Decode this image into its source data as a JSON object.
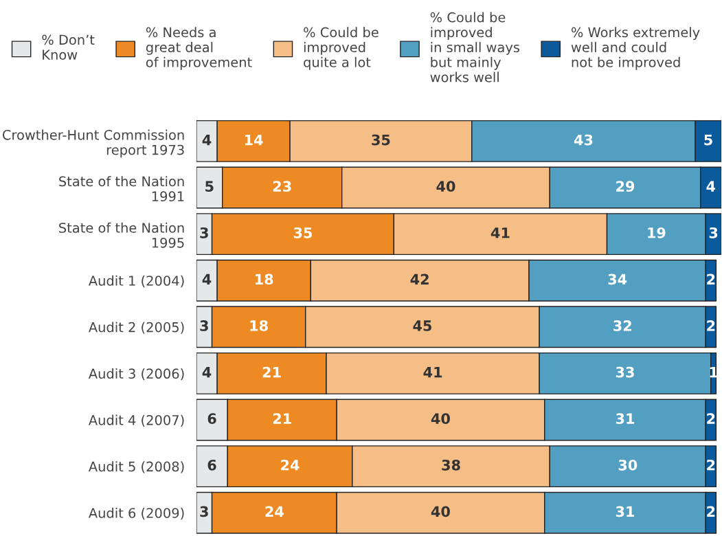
{
  "chart_data": {
    "type": "bar",
    "orientation": "horizontal",
    "stacked": true,
    "data_labels": true,
    "legend": "top",
    "grid": false,
    "tick_labels": "y",
    "categories": [
      "Crowther-Hunt Commission\nreport 1973",
      "State of the Nation\n1991",
      "State of the Nation\n1995",
      "Audit 1 (2004)",
      "Audit 2 (2005)",
      "Audit 3 (2006)",
      "Audit 4 (2007)",
      "Audit 5 (2008)",
      "Audit 6 (2009)"
    ],
    "series": [
      {
        "name": "% Don’t\nKnow",
        "color": "#e6e7e8",
        "values": [
          4,
          5,
          3,
          4,
          3,
          4,
          6,
          6,
          3
        ]
      },
      {
        "name": "% Needs a\ngreat deal\nof improvement",
        "color": "#ee8a23",
        "values": [
          14,
          23,
          35,
          18,
          18,
          21,
          21,
          24,
          24
        ]
      },
      {
        "name": "% Could be\nimproved\nquite a lot",
        "color": "#f6be87",
        "values": [
          35,
          40,
          41,
          42,
          45,
          41,
          40,
          38,
          40
        ]
      },
      {
        "name": "% Could be\nimproved\nin small ways\nbut mainly\nworks well",
        "color": "#539fc2",
        "values": [
          43,
          29,
          19,
          34,
          32,
          33,
          31,
          30,
          31
        ]
      },
      {
        "name": "% Works extremely\nwell and could\nnot be improved",
        "color": "#0a5a9c",
        "values": [
          5,
          4,
          3,
          2,
          2,
          1,
          2,
          2,
          2
        ]
      }
    ]
  }
}
